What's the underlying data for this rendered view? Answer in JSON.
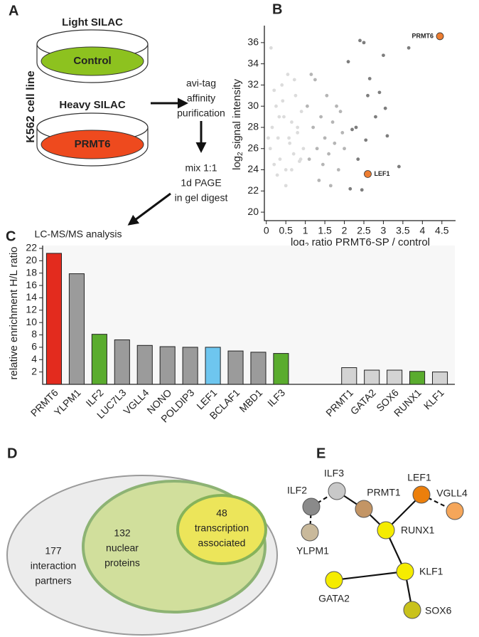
{
  "panels": {
    "a": "A",
    "b": "B",
    "c": "C",
    "d": "D",
    "e": "E"
  },
  "workflow": {
    "cell_line": "K562 cell line",
    "dishes": [
      {
        "title": "Light SILAC",
        "label": "Control",
        "color": "#8dc21f"
      },
      {
        "title": "Heavy SILAC",
        "label": "PRMT6",
        "color": "#ee4a1e"
      }
    ],
    "steps": [
      [
        "avi-tag",
        "affinity",
        "purification"
      ],
      [
        "mix 1:1",
        "1d PAGE",
        "in gel digest"
      ],
      [
        "LC-MS/MS analysis"
      ]
    ]
  },
  "chart_data": [
    {
      "type": "scatter",
      "xlabel": {
        "base": "log",
        "sub": "2",
        "text": "ratio PRMT6-SP / control"
      },
      "ylabel": {
        "base": "log",
        "sub": "2",
        "text": "signal intensity"
      },
      "xlim": [
        -0.05,
        4.85
      ],
      "ylim": [
        19.2,
        37.2
      ],
      "xticks": [
        0,
        0.5,
        1,
        1.5,
        2,
        2.5,
        3,
        3.5,
        4,
        4.5
      ],
      "yticks": [
        20,
        22,
        24,
        26,
        28,
        30,
        32,
        34,
        36
      ],
      "series": [
        {
          "color": "#dcdcdc",
          "x": [
            0.1,
            0.15,
            0.2,
            0.25,
            0.3,
            0.35,
            0.4,
            0.45,
            0.5,
            0.55,
            0.6,
            0.65,
            0.7,
            0.75,
            0.8,
            0.85,
            0.9,
            0.95,
            0.12,
            0.28,
            0.42,
            0.58,
            0.72,
            0.88,
            0.33,
            0.5,
            0.2,
            0.65,
            0.8,
            0.05
          ],
          "y": [
            26,
            28,
            24.5,
            30,
            27,
            25,
            32,
            29,
            24,
            33,
            26.5,
            28.5,
            25.5,
            31,
            27.5,
            24.8,
            29.5,
            26,
            35.5,
            23.5,
            30.5,
            27,
            32.5,
            25,
            29,
            22.5,
            31.5,
            24,
            28,
            27
          ]
        },
        {
          "color": "#b5b5b5",
          "x": [
            1.05,
            1.1,
            1.2,
            1.25,
            1.3,
            1.4,
            1.45,
            1.5,
            1.55,
            1.6,
            1.7,
            1.75,
            1.8,
            1.85,
            1.9,
            1.95,
            1.15,
            1.35,
            1.65,
            2.0
          ],
          "y": [
            30,
            25,
            28,
            32.5,
            26,
            29,
            24.5,
            27,
            31,
            25.5,
            28.5,
            26.5,
            30,
            24,
            29.5,
            27.5,
            33,
            23,
            22.5,
            26
          ]
        },
        {
          "color": "#7d7d7d",
          "x": [
            2.1,
            2.15,
            2.3,
            2.35,
            2.4,
            2.45,
            2.5,
            2.55,
            2.6,
            2.65,
            2.8,
            2.9,
            3.0,
            3.05,
            3.1,
            3.4,
            3.65,
            2.2
          ],
          "y": [
            34.2,
            22.2,
            28,
            25,
            36.2,
            22.1,
            36,
            26.8,
            31,
            32.6,
            29,
            31.3,
            34.8,
            29.8,
            27.2,
            24.3,
            35.5,
            27.8
          ]
        },
        {
          "color": "#ed7d31",
          "x": [
            4.45,
            2.6
          ],
          "y": [
            36.6,
            23.6
          ],
          "point_labels": [
            "PRMT6",
            "LEF1"
          ]
        }
      ]
    },
    {
      "type": "bar",
      "ylabel": "relative enrichment H/L ratio",
      "categories": [
        "PRMT6",
        "YLPM1",
        "ILF2",
        "LUC7L3",
        "VGLL4",
        "NONO",
        "POLDIP3",
        "LEF1",
        "BCLAF1",
        "MBD1",
        "ILF3",
        null,
        null,
        "PRMT1",
        "GATA2",
        "SOX6",
        "RUNX1",
        "KLF1"
      ],
      "values": [
        21.2,
        17.9,
        8.1,
        7.2,
        6.3,
        6.1,
        6.0,
        6.0,
        5.4,
        5.2,
        5.0,
        null,
        null,
        2.7,
        2.3,
        2.3,
        2.1,
        2.0
      ],
      "colors": [
        "#e32b1e",
        "#9b9b9b",
        "#5aac2e",
        "#9b9b9b",
        "#9b9b9b",
        "#9b9b9b",
        "#9b9b9b",
        "#6ec6ef",
        "#9b9b9b",
        "#9b9b9b",
        "#5aac2e",
        null,
        null,
        "#d3d3d3",
        "#d3d3d3",
        "#d3d3d3",
        "#5aac2e",
        "#d3d3d3"
      ],
      "ylim": [
        0,
        22
      ],
      "yticks": [
        2,
        4,
        6,
        8,
        10,
        12,
        14,
        16,
        18,
        20,
        22
      ]
    }
  ],
  "venn": {
    "sets": [
      {
        "count": 177,
        "lines": [
          "interaction",
          "partners"
        ],
        "color": "#ececec"
      },
      {
        "count": 132,
        "lines": [
          "nuclear",
          "proteins"
        ],
        "color": "#d1df9c"
      },
      {
        "count": 48,
        "lines": [
          "transcription",
          "associated"
        ],
        "color": "#ece55a"
      }
    ]
  },
  "network": {
    "nodes": [
      {
        "label": "ILF3",
        "color": "#c8c8c8"
      },
      {
        "label": "ILF2",
        "color": "#8a8a8a"
      },
      {
        "label": "YLPM1",
        "color": "#c9b99b"
      },
      {
        "label": "PRMT1",
        "color": "#c39565"
      },
      {
        "label": "RUNX1",
        "color": "#f5ec00"
      },
      {
        "label": "LEF1",
        "color": "#ec7f0b"
      },
      {
        "label": "VGLL4",
        "color": "#f5a65a"
      },
      {
        "label": "KLF1",
        "color": "#f5ec00"
      },
      {
        "label": "GATA2",
        "color": "#f5ec00"
      },
      {
        "label": "SOX6",
        "color": "#c9c21c"
      }
    ],
    "edges": [
      {
        "source": 1,
        "target": 0,
        "style": "dashed"
      },
      {
        "source": 1,
        "target": 2,
        "style": "dashed"
      },
      {
        "source": 0,
        "target": 3,
        "style": "solid"
      },
      {
        "source": 3,
        "target": 4,
        "style": "solid"
      },
      {
        "source": 4,
        "target": 5,
        "style": "solid"
      },
      {
        "source": 5,
        "target": 6,
        "style": "dashed"
      },
      {
        "source": 4,
        "target": 7,
        "style": "solid"
      },
      {
        "source": 7,
        "target": 8,
        "style": "solid"
      },
      {
        "source": 7,
        "target": 9,
        "style": "solid"
      }
    ]
  }
}
